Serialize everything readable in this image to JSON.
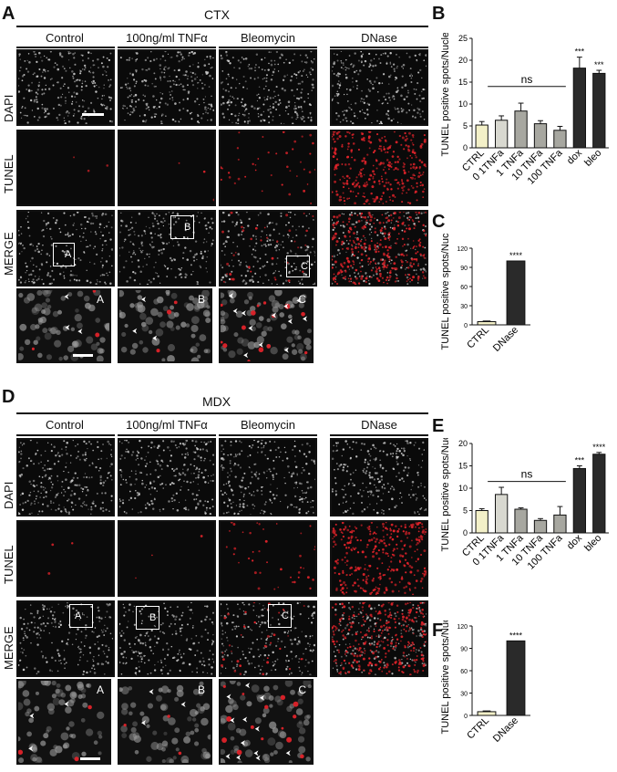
{
  "panels": {
    "A": "A",
    "B": "B",
    "C": "C",
    "D": "D",
    "E": "E",
    "F": "F"
  },
  "top": {
    "title": "CTX",
    "columns": [
      "Control",
      "100ng/ml TNFα",
      "Bleomycin",
      "DNase"
    ],
    "rows": [
      "DAPI",
      "TUNEL",
      "MERGE"
    ],
    "zoom_tags": [
      "A",
      "B",
      "C"
    ]
  },
  "bottom": {
    "title": "MDX",
    "columns": [
      "Control",
      "100ng/ml TNFα",
      "Bleomycin",
      "DNase"
    ],
    "rows": [
      "DAPI",
      "TUNEL",
      "MERGE"
    ],
    "zoom_tags": [
      "A",
      "B",
      "C"
    ]
  },
  "colors": {
    "dapi": "#d8d8d8",
    "tunel": "#e0232a",
    "bar_ctrl": "#f3f0c8",
    "bar_light": "#d8d8d0",
    "bar_mid": "#a7a7a0",
    "bar_dark": "#2a2a2a"
  },
  "chart_data": [
    {
      "id": "B",
      "type": "bar",
      "ylabel": "TUNEL positive spots/Nuclei",
      "categories": [
        "CTRL",
        "0 1TNFa",
        "1 TNFa",
        "10 TNFa",
        "100 TNFa",
        "dox",
        "bleo"
      ],
      "values": [
        5.2,
        6.3,
        8.4,
        5.5,
        4.0,
        18.2,
        17.0
      ],
      "errors": [
        0.8,
        1.0,
        1.8,
        0.7,
        0.9,
        2.5,
        0.7
      ],
      "ylim": [
        0,
        25
      ],
      "yticks": [
        "0",
        "5",
        "10",
        "15",
        "20",
        "25"
      ],
      "annotations": {
        "ns": "ns",
        "dox": "***",
        "bleo": "***"
      }
    },
    {
      "id": "C",
      "type": "bar",
      "ylabel": "TUNEL positive spots/Nuclei",
      "categories": [
        "CTRL",
        "DNase"
      ],
      "values": [
        5,
        100
      ],
      "errors": [
        1,
        0
      ],
      "ylim": [
        0,
        120
      ],
      "yticks": [
        "0",
        "30",
        "60",
        "90",
        "120"
      ],
      "annotations": {
        "DNase": "****"
      }
    },
    {
      "id": "E",
      "type": "bar",
      "ylabel": "TUNEL positive spots/Nuclei",
      "categories": [
        "CTRL",
        "0 1TNFa",
        "1 TNFa",
        "10 TNFa",
        "100 TNFa",
        "dox",
        "bleo"
      ],
      "values": [
        5.0,
        8.6,
        5.3,
        2.8,
        4.0,
        14.4,
        17.6
      ],
      "errors": [
        0.4,
        1.6,
        0.3,
        0.4,
        1.9,
        0.6,
        0.4
      ],
      "ylim": [
        0,
        20
      ],
      "yticks": [
        "0",
        "5",
        "10",
        "15",
        "20"
      ],
      "annotations": {
        "ns": "ns",
        "dox": "***",
        "bleo": "****"
      }
    },
    {
      "id": "F",
      "type": "bar",
      "ylabel": "TUNEL positive spots/Nuclei",
      "categories": [
        "CTRL",
        "DNase"
      ],
      "values": [
        5,
        100
      ],
      "errors": [
        1,
        0
      ],
      "ylim": [
        0,
        120
      ],
      "yticks": [
        "0",
        "30",
        "60",
        "90",
        "120"
      ],
      "annotations": {
        "DNase": "****"
      }
    }
  ]
}
